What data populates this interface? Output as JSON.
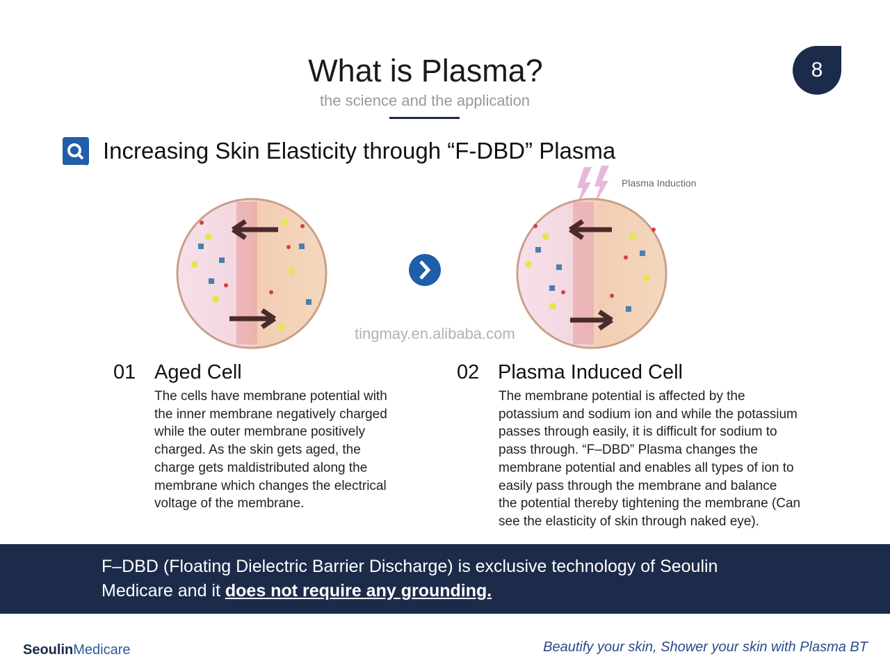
{
  "header": {
    "title": "What is Plasma?",
    "subtitle": "the science and the application",
    "page_number": "8"
  },
  "section": {
    "heading": "Increasing Skin Elasticity through “F-DBD” Plasma"
  },
  "figure": {
    "annotation": "Plasma Induction"
  },
  "watermark": "tingmay.en.alibaba.com",
  "items": [
    {
      "number": "01",
      "title": "Aged Cell",
      "lines": [
        "The cells have membrane potential with",
        "the inner membrane negatively charged",
        "while the outer membrane positively",
        "charged. As the skin gets aged, the",
        "charge gets maldistributed along the",
        "membrane which changes the electrical",
        "voltage of the membrane."
      ]
    },
    {
      "number": "02",
      "title": "Plasma Induced Cell",
      "lines": [
        "The membrane potential is affected by the",
        "potassium and sodium ion and while the potassium",
        "passes through easily, it is difficult for sodium to",
        "pass through.  “F–DBD”  Plasma changes the",
        "membrane potential and enables all types of ion to",
        "easily pass through the membrane and balance",
        "the potential thereby tightening the membrane (Can",
        "see the elasticity of skin through naked eye)."
      ]
    }
  ],
  "banner": {
    "line1": "F–DBD (Floating Dielectric Barrier Discharge) is exclusive technology of Seoulin",
    "line2": "Medicare and it ",
    "emphasis": "does not require any grounding."
  },
  "footer": {
    "brand_bold": "Seoulin",
    "brand_light": "Medicare",
    "tagline": "Beautify your skin, Shower your skin with Plasma BT"
  }
}
